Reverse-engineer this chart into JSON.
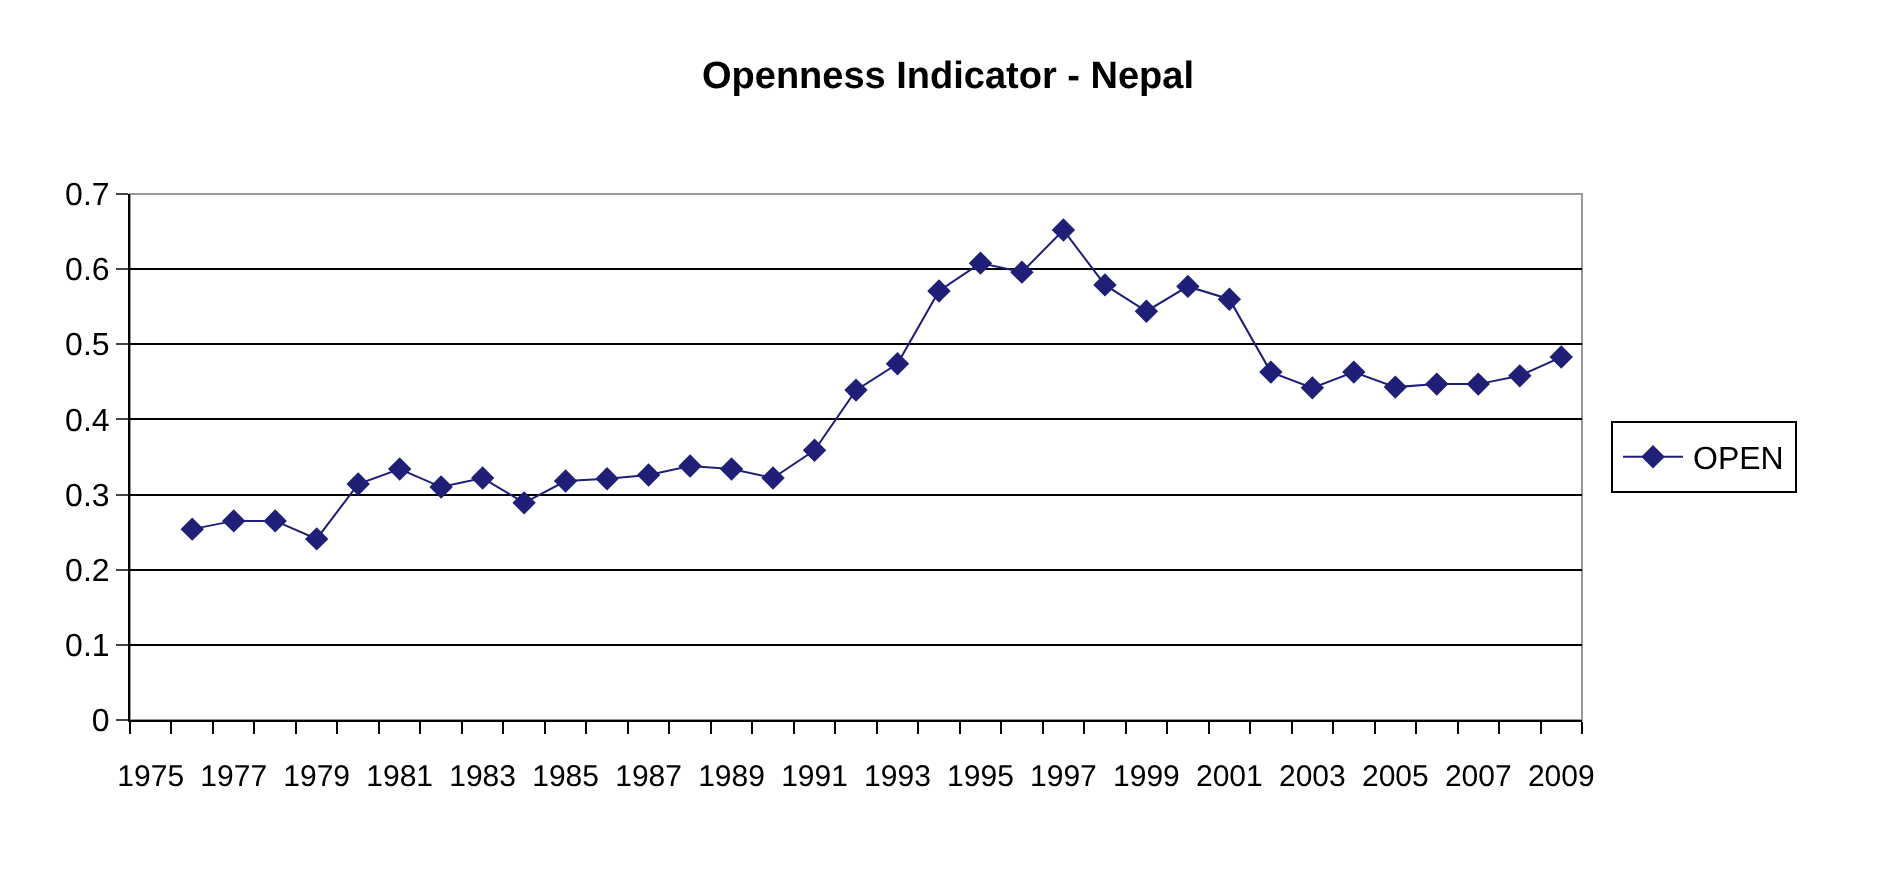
{
  "chart_data": {
    "type": "line",
    "title": "Openness Indicator - Nepal",
    "categories": [
      "1975",
      null,
      "1977",
      null,
      "1979",
      null,
      "1981",
      null,
      "1983",
      null,
      "1985",
      null,
      "1987",
      null,
      "1989",
      null,
      "1991",
      null,
      "1993",
      null,
      "1995",
      null,
      "1997",
      null,
      "1999",
      null,
      "2001",
      null,
      "2003",
      null,
      "2005",
      null,
      "2007",
      null,
      "2009"
    ],
    "series": [
      {
        "name": "OPEN",
        "color": "#1f1f78",
        "values": [
          null,
          0.254,
          0.265,
          0.265,
          0.241,
          0.314,
          0.334,
          0.31,
          0.322,
          0.289,
          0.318,
          0.321,
          0.326,
          0.338,
          0.334,
          0.322,
          0.359,
          0.439,
          0.474,
          0.571,
          0.608,
          0.596,
          0.652,
          0.579,
          0.544,
          0.577,
          0.56,
          0.463,
          0.442,
          0.463,
          0.443,
          0.447,
          0.447,
          0.458,
          0.483
        ]
      }
    ],
    "ylim": [
      0,
      0.7
    ],
    "yticks": [
      0,
      0.1,
      0.2,
      0.3,
      0.4,
      0.5,
      0.6,
      0.7
    ],
    "grid": "y",
    "legend": "right",
    "marker": "diamond",
    "line_style": "solid"
  }
}
